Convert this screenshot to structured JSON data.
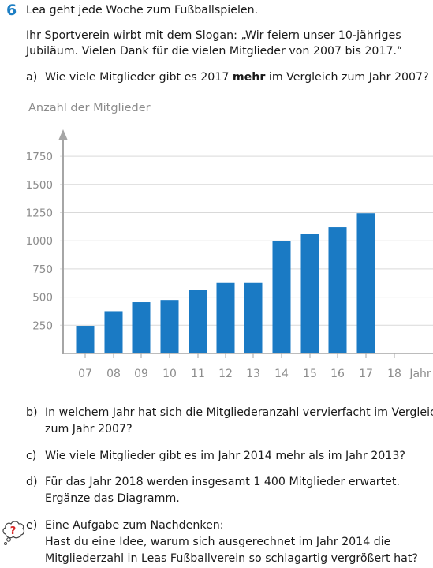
{
  "task": {
    "number": "6",
    "intro": "Lea geht jede Woche zum Fußballspielen.",
    "slogan_line1": "Ihr Sportverein wirbt mit dem Slogan: „Wir feiern unser 10-jähriges",
    "slogan_line2": "Jubiläum. Vielen Dank für die vielen Mitglieder von 2007 bis 2017.“"
  },
  "questions": {
    "a": {
      "label": "a)",
      "text_before": "Wie viele Mitglieder gibt es 2017 ",
      "text_bold": "mehr",
      "text_after": " im Vergleich zum Jahr 2007?"
    },
    "b": {
      "label": "b)",
      "line1": "In welchem Jahr hat sich die Mitgliederanzahl vervierfacht im Vergleich",
      "line2": "zum Jahr 2007?"
    },
    "c": {
      "label": "c)",
      "line1": "Wie viele Mitglieder gibt es im Jahr 2014 mehr als im Jahr 2013?"
    },
    "d": {
      "label": "d)",
      "line1": "Für das Jahr 2018 werden insgesamt 1 400 Mitglieder erwartet.",
      "line2": "Ergänze das Diagramm."
    },
    "e": {
      "label": "e)",
      "line1": "Eine Aufgabe zum Nachdenken:",
      "line2": "Hast du eine Idee, warum sich ausgerechnet im Jahr 2014 die",
      "line3": "Mitgliederzahl in Leas Fußballverein so schlagartig vergrößert hat?"
    }
  },
  "think_icon": {
    "name": "thinking-bubble-icon",
    "glyph": "?",
    "color": "#d62828"
  },
  "chart_data": {
    "type": "bar",
    "title": "",
    "ylabel": "Anzahl der Mitglieder",
    "xlabel": "Jahr",
    "categories": [
      "07",
      "08",
      "09",
      "10",
      "11",
      "12",
      "13",
      "14",
      "15",
      "16",
      "17",
      "18"
    ],
    "values": [
      245,
      375,
      455,
      475,
      565,
      625,
      625,
      1000,
      1060,
      1120,
      1245,
      null
    ],
    "yticks": [
      250,
      500,
      750,
      1000,
      1250,
      1500,
      1750
    ],
    "ylim": [
      0,
      1950
    ],
    "grid": true,
    "bar_color": "#1a7ac4",
    "grid_color": "#d9d9d9",
    "axis_color": "#a6a6a6"
  }
}
